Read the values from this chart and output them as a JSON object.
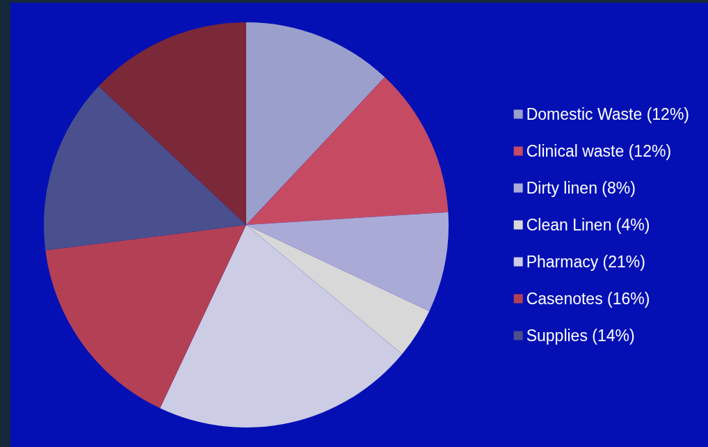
{
  "chart_data": {
    "type": "pie",
    "categories": [
      "Domestic Waste (12%)",
      "Clinical waste (12%)",
      "Dirty linen (8%)",
      "Clean Linen (4%)",
      "Pharmacy (21%)",
      "Casenotes (16%)",
      "Supplies (14%)",
      null
    ],
    "values": [
      12,
      12,
      8,
      4,
      21,
      16,
      14,
      13
    ],
    "colors": [
      "#9b9fcc",
      "#c64a62",
      "#aaaad6",
      "#d8d8d8",
      "#cccce4",
      "#b44056",
      "#4a4f8e",
      "#7b2838"
    ],
    "legend": "right"
  }
}
